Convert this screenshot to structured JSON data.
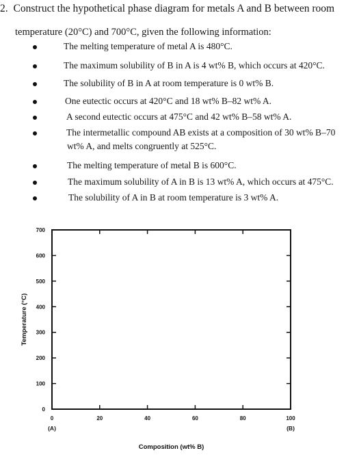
{
  "problem": {
    "number": "2.",
    "line1": "Construct the hypothetical phase diagram for metals A and B between room",
    "line2": "temperature (20°C) and 700°C, given the following information:",
    "bullets": [
      "The melting temperature of metal A is 480°C.",
      "The maximum solubility of B in A is 4 wt% B, which occurs at 420°C.",
      "The solubility of B in A at room temperature is 0 wt% B.",
      "One eutectic occurs at 420°C and 18 wt% B–82 wt% A.",
      "A second eutectic occurs at 475°C and 42 wt% B–58 wt% A.",
      "The intermetallic compound AB exists at a composition of 30 wt% B–70",
      "The melting temperature of metal B is 600°C.",
      "The maximum solubility of A in B is 13 wt% A, which occurs at 475°C.",
      "The solubility of A in B at room temperature is 3 wt% A."
    ],
    "bullet6_cont": "wt% A, and melts congruently at 525°C."
  },
  "chart_data": {
    "type": "blank-grid",
    "ylabel": "Temperature (°C)",
    "xlabel": "Composition (wt% B)",
    "ylim": [
      0,
      700
    ],
    "xlim": [
      0,
      100
    ],
    "yticks": [
      0,
      100,
      200,
      300,
      400,
      500,
      600,
      700
    ],
    "xticks": [
      0,
      20,
      40,
      60,
      80,
      100
    ],
    "y_tick_labels": [
      "0",
      "100",
      "200",
      "300",
      "400",
      "500",
      "600",
      "700"
    ],
    "x_tick_labels": [
      "0",
      "20",
      "40",
      "60",
      "80",
      "100"
    ],
    "x_end_labels": {
      "left": "(A)",
      "right": "(B)"
    }
  }
}
